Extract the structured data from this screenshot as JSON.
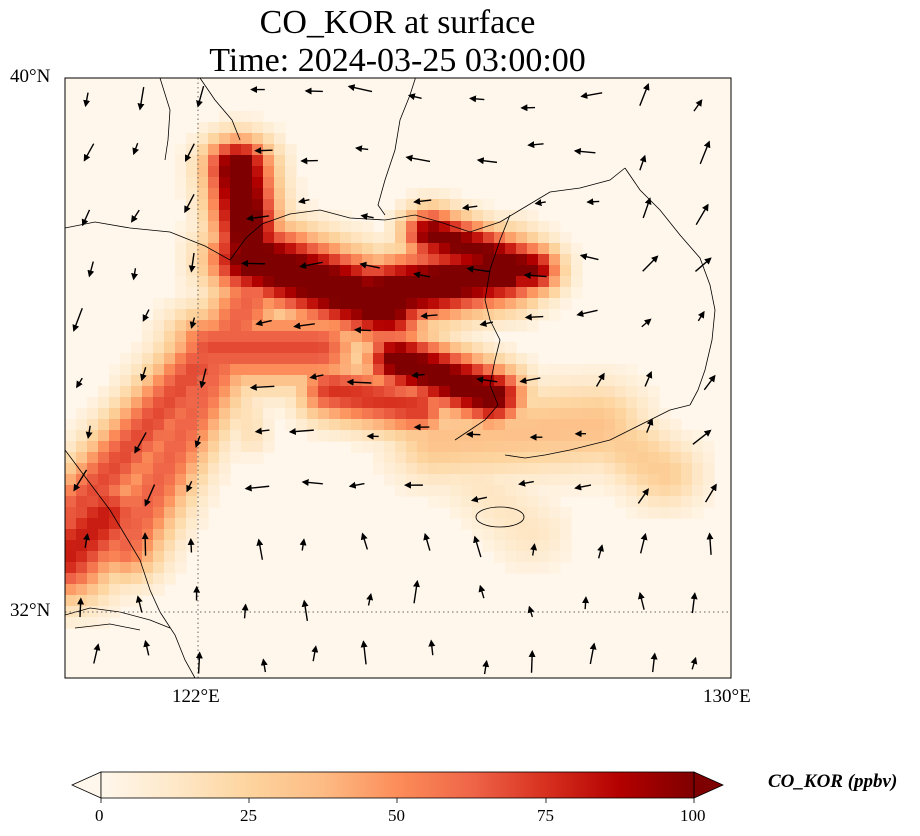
{
  "title_line1": "CO_KOR at surface",
  "title_line2": "Time: 2024-03-25 03:00:00",
  "lat_labels": [
    "40°N",
    "32°N"
  ],
  "lon_labels": [
    "122°E",
    "130°E"
  ],
  "colorbar": {
    "label": "CO_KOR (ppbv)",
    "ticks": [
      "0",
      "25",
      "50",
      "75",
      "100"
    ],
    "range": [
      0,
      100
    ],
    "colormap": "OrRd",
    "colors": [
      "#fff7ec",
      "#fee8c8",
      "#fdd49e",
      "#fdbb84",
      "#fc8d59",
      "#ef6548",
      "#d7301f",
      "#b30000",
      "#7f0000"
    ]
  },
  "map": {
    "projection": "PlateCarree",
    "extent": {
      "lon": [
        120,
        130
      ],
      "lat": [
        31,
        40
      ]
    },
    "gridlines": {
      "lon": [
        122,
        130
      ],
      "lat": [
        32,
        40
      ],
      "style": "dotted"
    }
  }
}
